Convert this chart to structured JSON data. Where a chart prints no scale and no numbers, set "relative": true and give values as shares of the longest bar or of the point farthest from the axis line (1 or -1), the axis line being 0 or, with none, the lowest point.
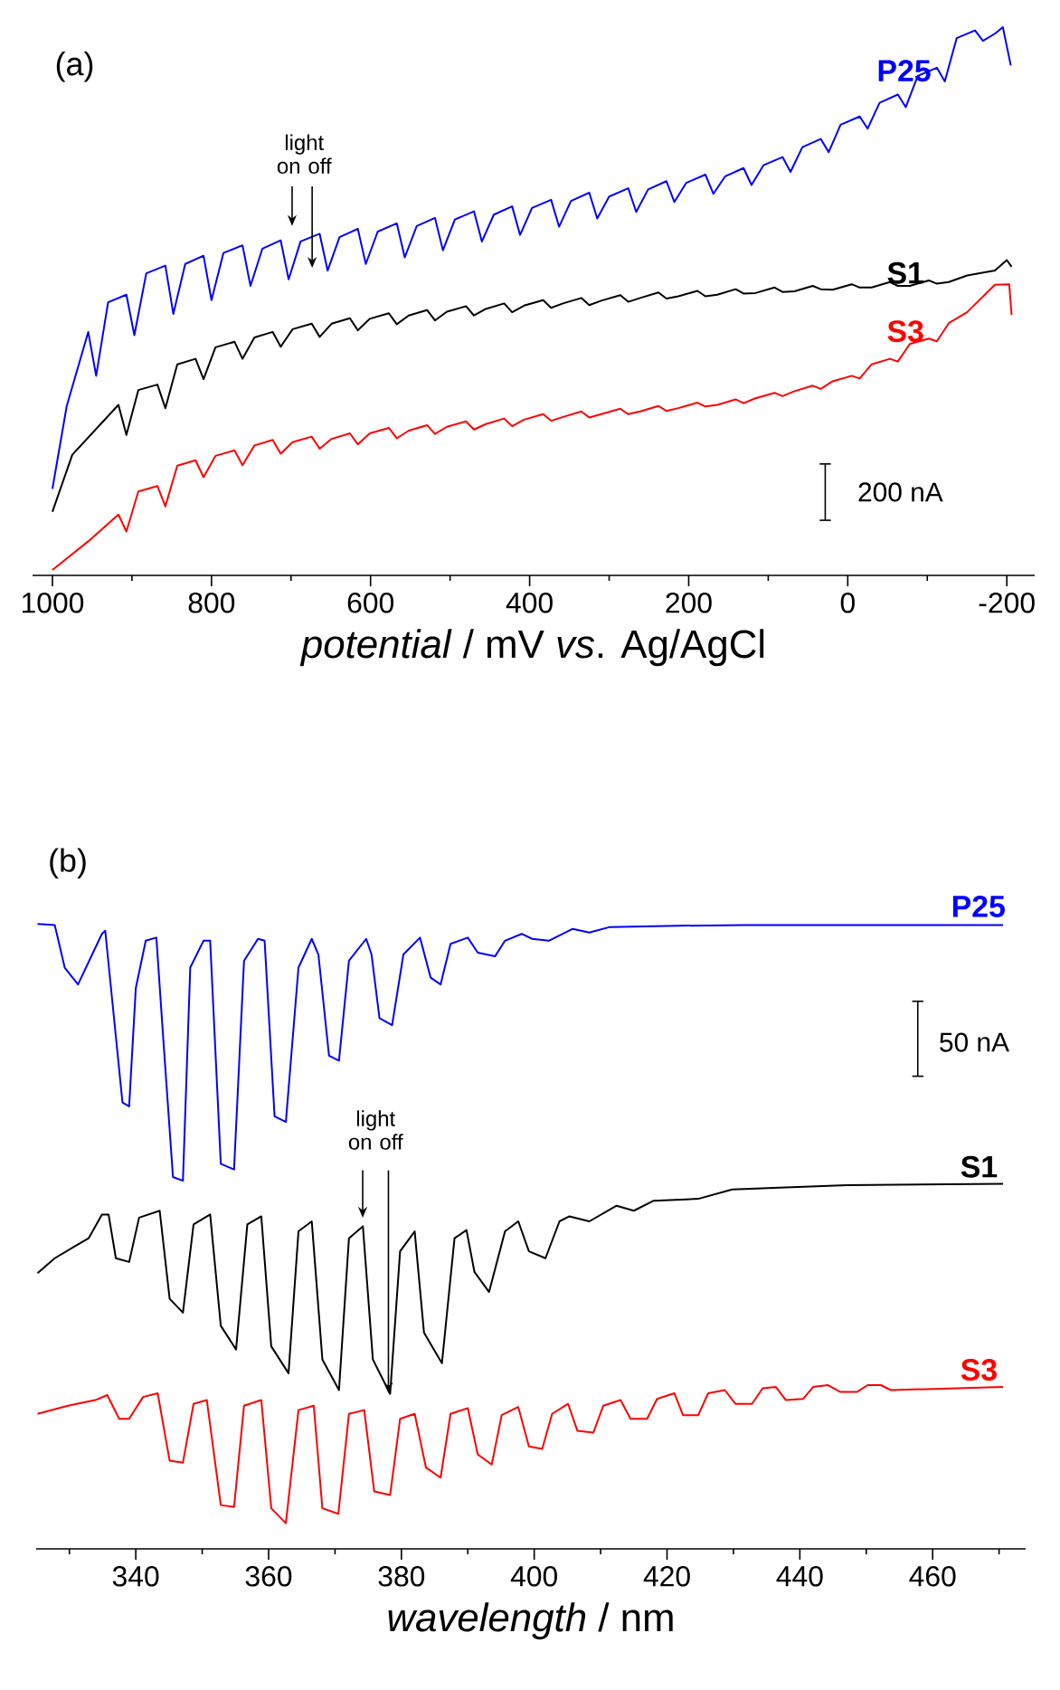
{
  "chart_data": [
    {
      "type": "line",
      "relative": true,
      "xlabel": "*potential* / mV *vs*. Ag/AgCl",
      "xlim": [
        1025,
        -235
      ],
      "xticks": [
        1000,
        {
          "value": 900,
          "label": null
        },
        800,
        {
          "value": 700,
          "label": null
        },
        600,
        {
          "value": 500,
          "label": null
        },
        400,
        {
          "value": 300,
          "label": null
        },
        200,
        {
          "value": 100,
          "label": null
        },
        0,
        {
          "value": -100,
          "label": null
        },
        -200
      ],
      "annotations": [
        "(a)",
        "light on off",
        "200 nA"
      ],
      "series": [
        {
          "name": "P25",
          "color": "#0000ff",
          "x": [
            1000,
            982,
            955,
            945,
            930,
            907,
            897,
            882,
            858,
            848,
            833,
            810,
            800,
            785,
            761,
            751,
            736,
            713,
            703,
            688,
            664,
            654,
            639,
            616,
            606,
            591,
            567,
            557,
            542,
            519,
            509,
            494,
            470,
            460,
            445,
            422,
            412,
            397,
            373,
            363,
            348,
            325,
            315,
            300,
            276,
            266,
            251,
            228,
            218,
            203,
            179,
            169,
            154,
            131,
            121,
            106,
            82,
            72,
            57,
            34,
            24,
            9,
            -15,
            -25,
            -40,
            -63,
            -73,
            -88,
            -112,
            -122,
            -137,
            -160,
            -170,
            -185,
            -195,
            -205
          ],
          "values": [
            0.158,
            0.309,
            0.444,
            0.364,
            0.498,
            0.512,
            0.438,
            0.551,
            0.565,
            0.477,
            0.568,
            0.583,
            0.502,
            0.588,
            0.602,
            0.528,
            0.596,
            0.611,
            0.54,
            0.609,
            0.623,
            0.556,
            0.617,
            0.632,
            0.568,
            0.627,
            0.642,
            0.58,
            0.637,
            0.652,
            0.593,
            0.649,
            0.664,
            0.609,
            0.658,
            0.673,
            0.621,
            0.67,
            0.685,
            0.636,
            0.683,
            0.698,
            0.651,
            0.691,
            0.706,
            0.663,
            0.704,
            0.719,
            0.681,
            0.716,
            0.731,
            0.696,
            0.728,
            0.743,
            0.712,
            0.748,
            0.763,
            0.736,
            0.781,
            0.796,
            0.772,
            0.822,
            0.837,
            0.815,
            0.862,
            0.877,
            0.854,
            0.911,
            0.926,
            0.901,
            0.98,
            0.994,
            0.975,
            0.988,
            1.0,
            0.93
          ]
        },
        {
          "name": "S1",
          "color": "#000000",
          "x": [
            1000,
            975,
            917,
            907,
            892,
            868,
            858,
            843,
            820,
            810,
            795,
            771,
            761,
            746,
            723,
            713,
            698,
            674,
            664,
            649,
            626,
            616,
            601,
            577,
            567,
            552,
            529,
            519,
            504,
            480,
            470,
            455,
            432,
            422,
            407,
            383,
            373,
            358,
            335,
            325,
            310,
            286,
            276,
            261,
            238,
            228,
            213,
            189,
            179,
            164,
            141,
            131,
            116,
            92,
            82,
            67,
            44,
            34,
            19,
            -5,
            -15,
            -30,
            -53,
            -63,
            -78,
            -102,
            -112,
            -127,
            -150,
            -185,
            -200,
            -206
          ],
          "values": [
            0.116,
            0.22,
            0.311,
            0.256,
            0.338,
            0.348,
            0.305,
            0.385,
            0.395,
            0.358,
            0.416,
            0.426,
            0.395,
            0.434,
            0.444,
            0.417,
            0.449,
            0.459,
            0.435,
            0.459,
            0.469,
            0.447,
            0.468,
            0.478,
            0.458,
            0.474,
            0.484,
            0.465,
            0.481,
            0.491,
            0.474,
            0.486,
            0.496,
            0.48,
            0.492,
            0.502,
            0.488,
            0.496,
            0.506,
            0.493,
            0.501,
            0.511,
            0.499,
            0.506,
            0.516,
            0.505,
            0.509,
            0.519,
            0.509,
            0.512,
            0.522,
            0.514,
            0.515,
            0.525,
            0.517,
            0.518,
            0.528,
            0.522,
            0.521,
            0.531,
            0.525,
            0.525,
            0.535,
            0.528,
            0.528,
            0.538,
            0.532,
            0.535,
            0.547,
            0.556,
            0.575,
            0.563
          ]
        },
        {
          "name": "S3",
          "color": "#ff0000",
          "x": [
            1000,
            955,
            917,
            907,
            892,
            868,
            858,
            843,
            820,
            810,
            795,
            771,
            761,
            746,
            723,
            713,
            698,
            674,
            664,
            649,
            626,
            616,
            601,
            577,
            567,
            552,
            529,
            519,
            504,
            480,
            470,
            455,
            432,
            422,
            407,
            383,
            373,
            358,
            335,
            325,
            310,
            286,
            276,
            261,
            238,
            228,
            213,
            189,
            179,
            164,
            141,
            131,
            116,
            92,
            82,
            67,
            44,
            34,
            19,
            -5,
            -15,
            -30,
            -53,
            -63,
            -78,
            -102,
            -112,
            -127,
            -150,
            -185,
            -203,
            -206
          ],
          "values": [
            0.01,
            0.062,
            0.111,
            0.08,
            0.153,
            0.163,
            0.126,
            0.2,
            0.21,
            0.179,
            0.218,
            0.228,
            0.201,
            0.237,
            0.247,
            0.222,
            0.243,
            0.253,
            0.231,
            0.249,
            0.259,
            0.239,
            0.259,
            0.269,
            0.25,
            0.264,
            0.274,
            0.258,
            0.271,
            0.281,
            0.266,
            0.276,
            0.286,
            0.272,
            0.284,
            0.294,
            0.282,
            0.289,
            0.299,
            0.288,
            0.294,
            0.304,
            0.294,
            0.299,
            0.309,
            0.3,
            0.305,
            0.315,
            0.308,
            0.311,
            0.321,
            0.314,
            0.323,
            0.333,
            0.327,
            0.336,
            0.346,
            0.34,
            0.354,
            0.364,
            0.359,
            0.385,
            0.395,
            0.39,
            0.422,
            0.432,
            0.427,
            0.46,
            0.48,
            0.53,
            0.531,
            0.475
          ]
        }
      ]
    },
    {
      "type": "line",
      "relative": true,
      "xlabel": "*wavelength* / nm",
      "xlim": [
        325,
        474
      ],
      "xticks": [
        {
          "value": 330,
          "label": null
        },
        340,
        {
          "value": 350,
          "label": null
        },
        360,
        {
          "value": 370,
          "label": null
        },
        380,
        {
          "value": 390,
          "label": null
        },
        400,
        {
          "value": 410,
          "label": null
        },
        420,
        {
          "value": 430,
          "label": null
        },
        440,
        {
          "value": 450,
          "label": null
        },
        460,
        {
          "value": 470,
          "label": null
        }
      ],
      "annotations": [
        "(b)",
        "light on off",
        "50 nA"
      ],
      "series": [
        {
          "name": "P25",
          "color": "#0000ff",
          "x": [
            325.2,
            327.8,
            329.3,
            331.3,
            334.9,
            335.4,
            338.0,
            339.0,
            340.0,
            341.5,
            343.1,
            344.1,
            345.6,
            347.1,
            348.2,
            350.2,
            351.2,
            352.8,
            354.8,
            356.3,
            358.4,
            359.4,
            360.9,
            362.6,
            364.5,
            366.5,
            367.5,
            369.1,
            370.6,
            372.1,
            374.7,
            375.5,
            376.7,
            378.6,
            380.3,
            382.8,
            384.4,
            385.9,
            387.4,
            390.0,
            391.5,
            394.1,
            395.6,
            398.1,
            399.7,
            402.2,
            405.8,
            408.3,
            411.4,
            421.6,
            431.8,
            470.6
          ],
          "values": [
            1.0,
            0.998,
            0.93,
            0.903,
            0.984,
            0.989,
            0.714,
            0.708,
            0.897,
            0.973,
            0.978,
            0.822,
            0.595,
            0.589,
            0.93,
            0.973,
            0.973,
            0.616,
            0.607,
            0.941,
            0.976,
            0.973,
            0.692,
            0.683,
            0.93,
            0.976,
            0.951,
            0.789,
            0.781,
            0.941,
            0.976,
            0.951,
            0.849,
            0.838,
            0.951,
            0.978,
            0.914,
            0.903,
            0.968,
            0.978,
            0.954,
            0.948,
            0.973,
            0.984,
            0.976,
            0.973,
            0.992,
            0.986,
            0.995,
            0.997,
            0.998,
            0.998
          ]
        },
        {
          "name": "S1",
          "color": "#000000",
          "x": [
            325.2,
            327.8,
            330.8,
            332.9,
            334.9,
            335.9,
            337.0,
            339.0,
            340.5,
            343.6,
            345.1,
            347.1,
            348.7,
            351.2,
            352.8,
            355.1,
            356.8,
            358.9,
            360.4,
            363.0,
            364.5,
            366.5,
            368.1,
            370.6,
            372.1,
            374.2,
            375.7,
            378.3,
            379.8,
            382.0,
            383.4,
            386.1,
            388.0,
            389.8,
            391.0,
            393.2,
            395.6,
            397.6,
            399.2,
            401.7,
            403.8,
            405.3,
            408.3,
            412.4,
            415.0,
            418.0,
            424.7,
            429.8,
            436.9,
            447.1,
            470.6
          ],
          "values": [
            0.441,
            0.465,
            0.484,
            0.497,
            0.535,
            0.535,
            0.465,
            0.459,
            0.53,
            0.541,
            0.4,
            0.378,
            0.519,
            0.535,
            0.357,
            0.319,
            0.519,
            0.532,
            0.324,
            0.281,
            0.508,
            0.524,
            0.303,
            0.254,
            0.497,
            0.516,
            0.303,
            0.248,
            0.476,
            0.508,
            0.346,
            0.297,
            0.497,
            0.51,
            0.443,
            0.411,
            0.508,
            0.524,
            0.476,
            0.465,
            0.524,
            0.532,
            0.524,
            0.549,
            0.541,
            0.557,
            0.56,
            0.575,
            0.578,
            0.582,
            0.584
          ]
        },
        {
          "name": "S3",
          "color": "#ff0000",
          "x": [
            325.2,
            329.8,
            333.9,
            335.7,
            337.5,
            339.0,
            341.1,
            343.3,
            345.1,
            347.1,
            348.7,
            350.7,
            352.8,
            354.8,
            356.3,
            358.9,
            360.4,
            362.6,
            364.5,
            366.8,
            368.1,
            370.5,
            372.1,
            374.4,
            375.9,
            378.3,
            379.8,
            382.0,
            383.7,
            385.9,
            387.4,
            390.0,
            391.5,
            393.6,
            395.1,
            397.6,
            399.2,
            401.2,
            402.7,
            405.1,
            406.5,
            408.9,
            410.4,
            413.0,
            414.5,
            417.0,
            418.5,
            421.1,
            422.4,
            424.7,
            426.2,
            428.7,
            430.3,
            432.8,
            434.4,
            436.4,
            437.9,
            440.5,
            442.0,
            444.2,
            446.1,
            448.6,
            450.2,
            452.2,
            453.7,
            470.6
          ],
          "values": [
            0.216,
            0.229,
            0.238,
            0.246,
            0.208,
            0.208,
            0.243,
            0.249,
            0.141,
            0.138,
            0.232,
            0.238,
            0.07,
            0.067,
            0.229,
            0.238,
            0.065,
            0.041,
            0.222,
            0.229,
            0.065,
            0.056,
            0.216,
            0.222,
            0.092,
            0.086,
            0.208,
            0.216,
            0.13,
            0.114,
            0.216,
            0.225,
            0.151,
            0.135,
            0.214,
            0.227,
            0.164,
            0.16,
            0.216,
            0.232,
            0.189,
            0.186,
            0.229,
            0.238,
            0.208,
            0.208,
            0.24,
            0.249,
            0.214,
            0.214,
            0.249,
            0.254,
            0.232,
            0.232,
            0.257,
            0.259,
            0.238,
            0.24,
            0.259,
            0.262,
            0.251,
            0.251,
            0.262,
            0.262,
            0.254,
            0.259
          ]
        }
      ]
    }
  ]
}
